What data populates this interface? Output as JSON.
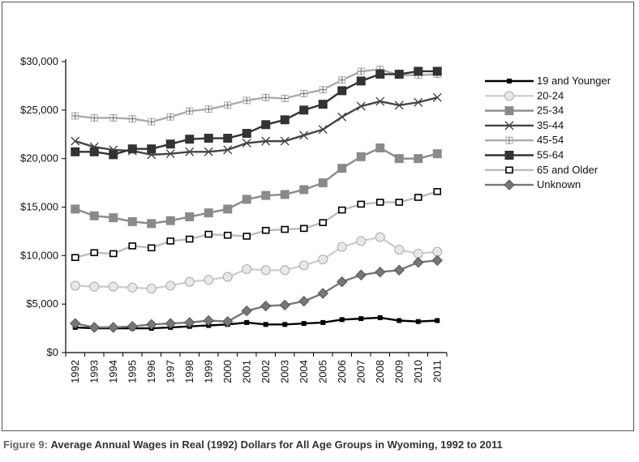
{
  "caption": {
    "label": "Figure 9:",
    "text": "Average Annual Wages in Real (1992) Dollars for All Age Groups in Wyoming, 1992 to 2011"
  },
  "chart_data": {
    "type": "line",
    "title": "",
    "xlabel": "",
    "ylabel": "",
    "x": [
      "1992",
      "1993",
      "1994",
      "1995",
      "1996",
      "1997",
      "1998",
      "1999",
      "2000",
      "2001",
      "2002",
      "2003",
      "2004",
      "2005",
      "2006",
      "2007",
      "2008",
      "2009",
      "2010",
      "2011"
    ],
    "ylim": [
      0,
      30000
    ],
    "yticks": [
      0,
      5000,
      10000,
      15000,
      20000,
      25000,
      30000
    ],
    "ytick_labels": [
      "$0",
      "$5,000",
      "$10,000",
      "$15,000",
      "$20,000",
      "$25,000",
      "$30,000"
    ],
    "grid": false,
    "legend_position": "right",
    "series": [
      {
        "name": "19 and Younger",
        "color": "#000000",
        "marker": "small-square",
        "values": [
          2600,
          2500,
          2500,
          2500,
          2500,
          2600,
          2700,
          2800,
          2900,
          3100,
          2900,
          2900,
          3000,
          3100,
          3400,
          3500,
          3600,
          3300,
          3200,
          3300
        ]
      },
      {
        "name": "20-24",
        "color": "#cfcfcf",
        "marker": "circle",
        "values": [
          6900,
          6800,
          6800,
          6700,
          6600,
          6900,
          7300,
          7500,
          7800,
          8600,
          8500,
          8500,
          9000,
          9600,
          10900,
          11500,
          11900,
          10600,
          10200,
          10400
        ]
      },
      {
        "name": "25-34",
        "color": "#8a8a8a",
        "marker": "square",
        "values": [
          14800,
          14100,
          13900,
          13500,
          13300,
          13600,
          14000,
          14400,
          14800,
          15800,
          16200,
          16300,
          16800,
          17500,
          19000,
          20200,
          21100,
          20000,
          20000,
          20500
        ]
      },
      {
        "name": "35-44",
        "color": "#444444",
        "marker": "x",
        "values": [
          21800,
          21200,
          20900,
          20800,
          20400,
          20500,
          20700,
          20700,
          20900,
          21600,
          21800,
          21800,
          22400,
          23000,
          24300,
          25400,
          25900,
          25500,
          25800,
          26300
        ]
      },
      {
        "name": "45-54",
        "color": "#aaaaaa",
        "marker": "cross",
        "values": [
          24400,
          24200,
          24200,
          24100,
          23800,
          24300,
          24900,
          25100,
          25500,
          26000,
          26300,
          26200,
          26700,
          27100,
          28100,
          29000,
          29200,
          28600,
          28600,
          28700
        ]
      },
      {
        "name": "55-64",
        "color": "#333333",
        "marker": "square",
        "values": [
          20700,
          20700,
          20400,
          21000,
          21000,
          21500,
          22000,
          22100,
          22100,
          22600,
          23500,
          24000,
          25000,
          25600,
          27000,
          28000,
          28700,
          28700,
          29000,
          29000
        ]
      },
      {
        "name": "65 and Older",
        "color": "#bbbbbb",
        "marker": "open-square",
        "values": [
          9800,
          10300,
          10200,
          11000,
          10800,
          11500,
          11700,
          12200,
          12100,
          12000,
          12600,
          12700,
          12800,
          13400,
          14700,
          15300,
          15500,
          15500,
          16000,
          16600
        ]
      },
      {
        "name": "Unknown",
        "color": "#777777",
        "marker": "diamond",
        "values": [
          3000,
          2600,
          2600,
          2700,
          2900,
          3000,
          3100,
          3300,
          3200,
          4300,
          4800,
          4900,
          5300,
          6100,
          7300,
          8000,
          8300,
          8500,
          9300,
          9500
        ]
      }
    ]
  }
}
